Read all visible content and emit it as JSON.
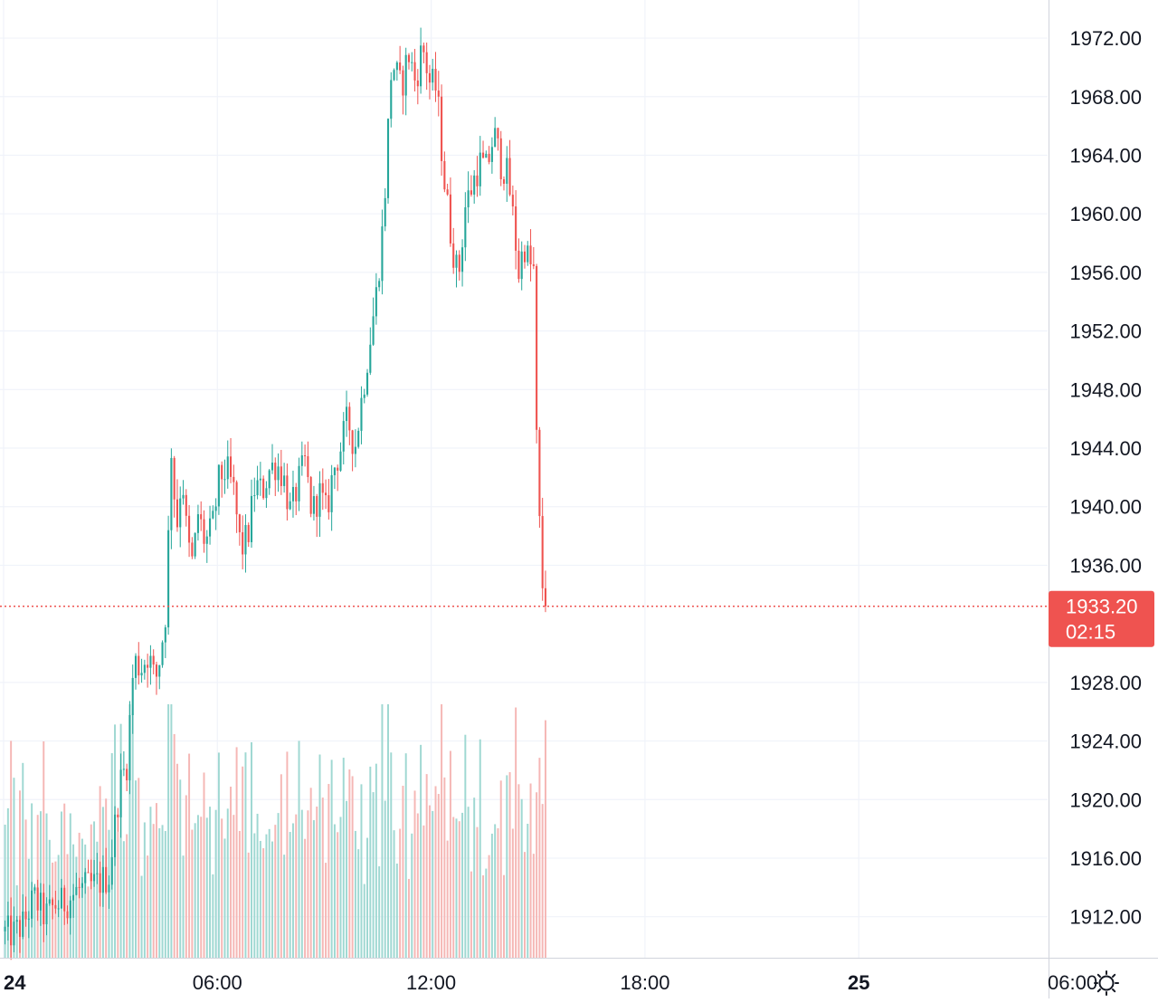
{
  "chart_data": {
    "type": "candlestick",
    "plot_range": {
      "x_hours": [
        -0.1,
        29.3
      ],
      "y_price": [
        1909.2,
        1974.6
      ]
    },
    "y_ticks": [
      "1972.00",
      "1968.00",
      "1964.00",
      "1960.00",
      "1956.00",
      "1952.00",
      "1948.00",
      "1944.00",
      "1940.00",
      "1936.00",
      "1928.00",
      "1924.00",
      "1920.00",
      "1916.00",
      "1912.00"
    ],
    "y_tick_values": [
      1972,
      1968,
      1964,
      1960,
      1956,
      1952,
      1948,
      1944,
      1940,
      1936,
      1928,
      1924,
      1920,
      1916,
      1912
    ],
    "x_ticks": [
      {
        "label": "24",
        "hour": 0,
        "bold": true
      },
      {
        "label": "06:00",
        "hour": 6,
        "bold": false
      },
      {
        "label": "12:00",
        "hour": 12,
        "bold": false
      },
      {
        "label": "18:00",
        "hour": 18,
        "bold": false
      },
      {
        "label": "25",
        "hour": 24,
        "bold": true
      },
      {
        "label": "06:00",
        "hour": 30,
        "bold": false
      }
    ],
    "last_price": {
      "value": 1933.2,
      "label": "1933.20",
      "countdown": "02:15"
    },
    "candle_interval_minutes": 5,
    "price_path": [
      [
        0.0,
        1911.0
      ],
      [
        0.3,
        1910.8
      ],
      [
        0.6,
        1911.5
      ],
      [
        0.9,
        1913.3
      ],
      [
        1.2,
        1912.0
      ],
      [
        1.5,
        1912.8
      ],
      [
        1.8,
        1913.0
      ],
      [
        2.1,
        1913.8
      ],
      [
        2.4,
        1914.0
      ],
      [
        2.7,
        1914.3
      ],
      [
        3.0,
        1914.8
      ],
      [
        3.3,
        1921.0
      ],
      [
        3.5,
        1922.5
      ],
      [
        3.7,
        1929.5
      ],
      [
        3.9,
        1929.0
      ],
      [
        4.1,
        1930.0
      ],
      [
        4.3,
        1928.0
      ],
      [
        4.45,
        1930.0
      ],
      [
        4.6,
        1933.0
      ],
      [
        4.75,
        1944.0
      ],
      [
        4.9,
        1938.5
      ],
      [
        5.05,
        1942.5
      ],
      [
        5.2,
        1937.5
      ],
      [
        5.35,
        1936.0
      ],
      [
        5.5,
        1939.5
      ],
      [
        5.7,
        1937.5
      ],
      [
        5.9,
        1938.5
      ],
      [
        6.1,
        1942.0
      ],
      [
        6.3,
        1942.5
      ],
      [
        6.5,
        1941.0
      ],
      [
        6.7,
        1937.0
      ],
      [
        6.9,
        1938.0
      ],
      [
        7.1,
        1941.5
      ],
      [
        7.3,
        1941.0
      ],
      [
        7.5,
        1942.5
      ],
      [
        7.7,
        1943.0
      ],
      [
        7.9,
        1942.0
      ],
      [
        8.1,
        1939.5
      ],
      [
        8.3,
        1941.5
      ],
      [
        8.5,
        1943.0
      ],
      [
        8.7,
        1939.5
      ],
      [
        8.9,
        1941.0
      ],
      [
        9.1,
        1939.5
      ],
      [
        9.3,
        1942.5
      ],
      [
        9.5,
        1944.0
      ],
      [
        9.7,
        1946.0
      ],
      [
        9.9,
        1944.0
      ],
      [
        10.1,
        1947.5
      ],
      [
        10.3,
        1951.0
      ],
      [
        10.5,
        1954.5
      ],
      [
        10.7,
        1959.5
      ],
      [
        10.8,
        1964.0
      ],
      [
        10.9,
        1969.5
      ],
      [
        11.0,
        1970.0
      ],
      [
        11.2,
        1968.5
      ],
      [
        11.4,
        1971.0
      ],
      [
        11.6,
        1969.0
      ],
      [
        11.8,
        1971.5
      ],
      [
        12.0,
        1969.0
      ],
      [
        12.2,
        1968.5
      ],
      [
        12.4,
        1962.5
      ],
      [
        12.6,
        1958.5
      ],
      [
        12.8,
        1955.5
      ],
      [
        13.0,
        1960.5
      ],
      [
        13.2,
        1962.0
      ],
      [
        13.4,
        1963.5
      ],
      [
        13.6,
        1963.0
      ],
      [
        13.8,
        1965.5
      ],
      [
        14.0,
        1963.5
      ],
      [
        14.2,
        1962.5
      ],
      [
        14.35,
        1959.5
      ],
      [
        14.5,
        1956.0
      ],
      [
        14.65,
        1958.0
      ],
      [
        14.8,
        1956.5
      ],
      [
        14.95,
        1956.0
      ],
      [
        15.0,
        1944.5
      ],
      [
        15.1,
        1937.5
      ],
      [
        15.2,
        1933.2
      ]
    ],
    "candle_body_color_up": "#26a69a",
    "candle_body_color_down": "#ef5350",
    "volume_color_up": "#9fd8d2",
    "volume_color_down": "#f5b7b5",
    "last_price_color": "#ef5350"
  }
}
